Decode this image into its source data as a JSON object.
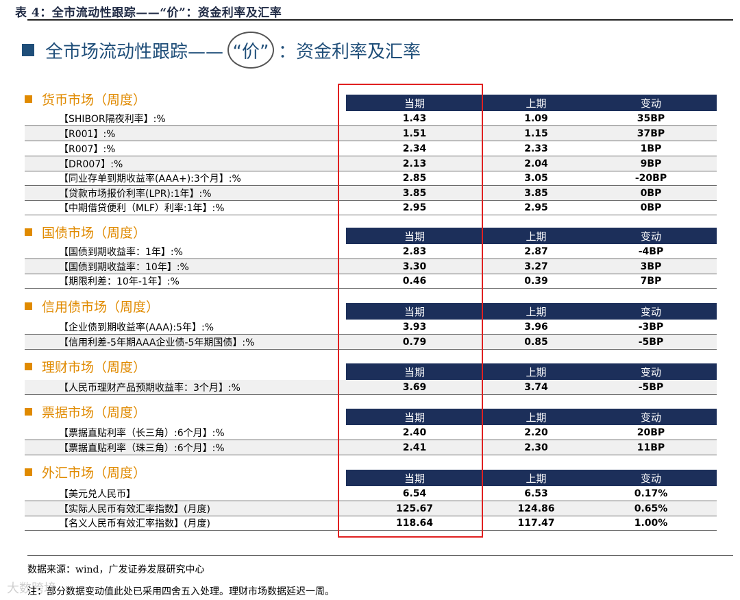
{
  "caption": "表 4：全市流动性跟踪——“价”：资金利率及汇率",
  "headline": {
    "pre": "全市场流动性跟踪——",
    "circled": "“价”",
    "post": "：资金利率及汇率"
  },
  "columns": {
    "current": "当期",
    "previous": "上期",
    "change": "变动"
  },
  "sections": [
    {
      "title": "货币市场（周度）",
      "rows": [
        {
          "label": "【SHIBOR隔夜利率】:%",
          "current": "1.43",
          "previous": "1.09",
          "change": "35BP"
        },
        {
          "label": "【R001】:%",
          "current": "1.51",
          "previous": "1.15",
          "change": "37BP"
        },
        {
          "label": "【R007】:%",
          "current": "2.34",
          "previous": "2.33",
          "change": "1BP"
        },
        {
          "label": "【DR007】:%",
          "current": "2.13",
          "previous": "2.04",
          "change": "9BP"
        },
        {
          "label": "【同业存单到期收益率(AAA+):3个月】:%",
          "current": "2.85",
          "previous": "3.05",
          "change": "-20BP"
        },
        {
          "label": "【贷款市场报价利率(LPR):1年】:%",
          "current": "3.85",
          "previous": "3.85",
          "change": "0BP"
        },
        {
          "label": "【中期借贷便利（MLF）利率:1年】:%",
          "current": "2.95",
          "previous": "2.95",
          "change": "0BP"
        }
      ]
    },
    {
      "title": "国债市场（周度）",
      "rows": [
        {
          "label": "【国债到期收益率：1年】:%",
          "current": "2.83",
          "previous": "2.87",
          "change": "-4BP"
        },
        {
          "label": "【国债到期收益率：10年】:%",
          "current": "3.30",
          "previous": "3.27",
          "change": "3BP"
        },
        {
          "label": "【期限利差：10年-1年】:%",
          "current": "0.46",
          "previous": "0.39",
          "change": "7BP"
        }
      ]
    },
    {
      "title": "信用债市场（周度）",
      "rows": [
        {
          "label": "【企业债到期收益率(AAA):5年】:%",
          "current": "3.93",
          "previous": "3.96",
          "change": "-3BP"
        },
        {
          "label": "【信用利差-5年期AAA企业债-5年期国债】:%",
          "current": "0.79",
          "previous": "0.85",
          "change": "-5BP"
        }
      ]
    },
    {
      "title": "理财市场（周度）",
      "rows": [
        {
          "label": "【人民币理财产品预期收益率：3个月】:%",
          "current": "3.69",
          "previous": "3.74",
          "change": "-5BP"
        }
      ]
    },
    {
      "title": "票据市场（周度）",
      "rows": [
        {
          "label": "【票据直贴利率（长三角）:6个月】:%",
          "current": "2.40",
          "previous": "2.20",
          "change": "20BP"
        },
        {
          "label": "【票据直贴利率（珠三角）:6个月】:%",
          "current": "2.41",
          "previous": "2.30",
          "change": "11BP"
        }
      ]
    },
    {
      "title": "外汇市场（周度）",
      "rows": [
        {
          "label": "【美元兑人民币】",
          "current": "6.54",
          "previous": "6.53",
          "change": "0.17%"
        },
        {
          "label": "【实际人民币有效汇率指数】(月度)",
          "current": "125.67",
          "previous": "124.86",
          "change": "0.65%"
        },
        {
          "label": "【名义人民币有效汇率指数】(月度)",
          "current": "118.64",
          "previous": "117.47",
          "change": "1.00%"
        }
      ]
    }
  ],
  "source": "数据来源：wind，广发证券发展研究中心",
  "note": "注：部分数据变动值此处已采用四舍五入处理。理财市场数据延迟一周。",
  "watermark": "大数跨境"
}
